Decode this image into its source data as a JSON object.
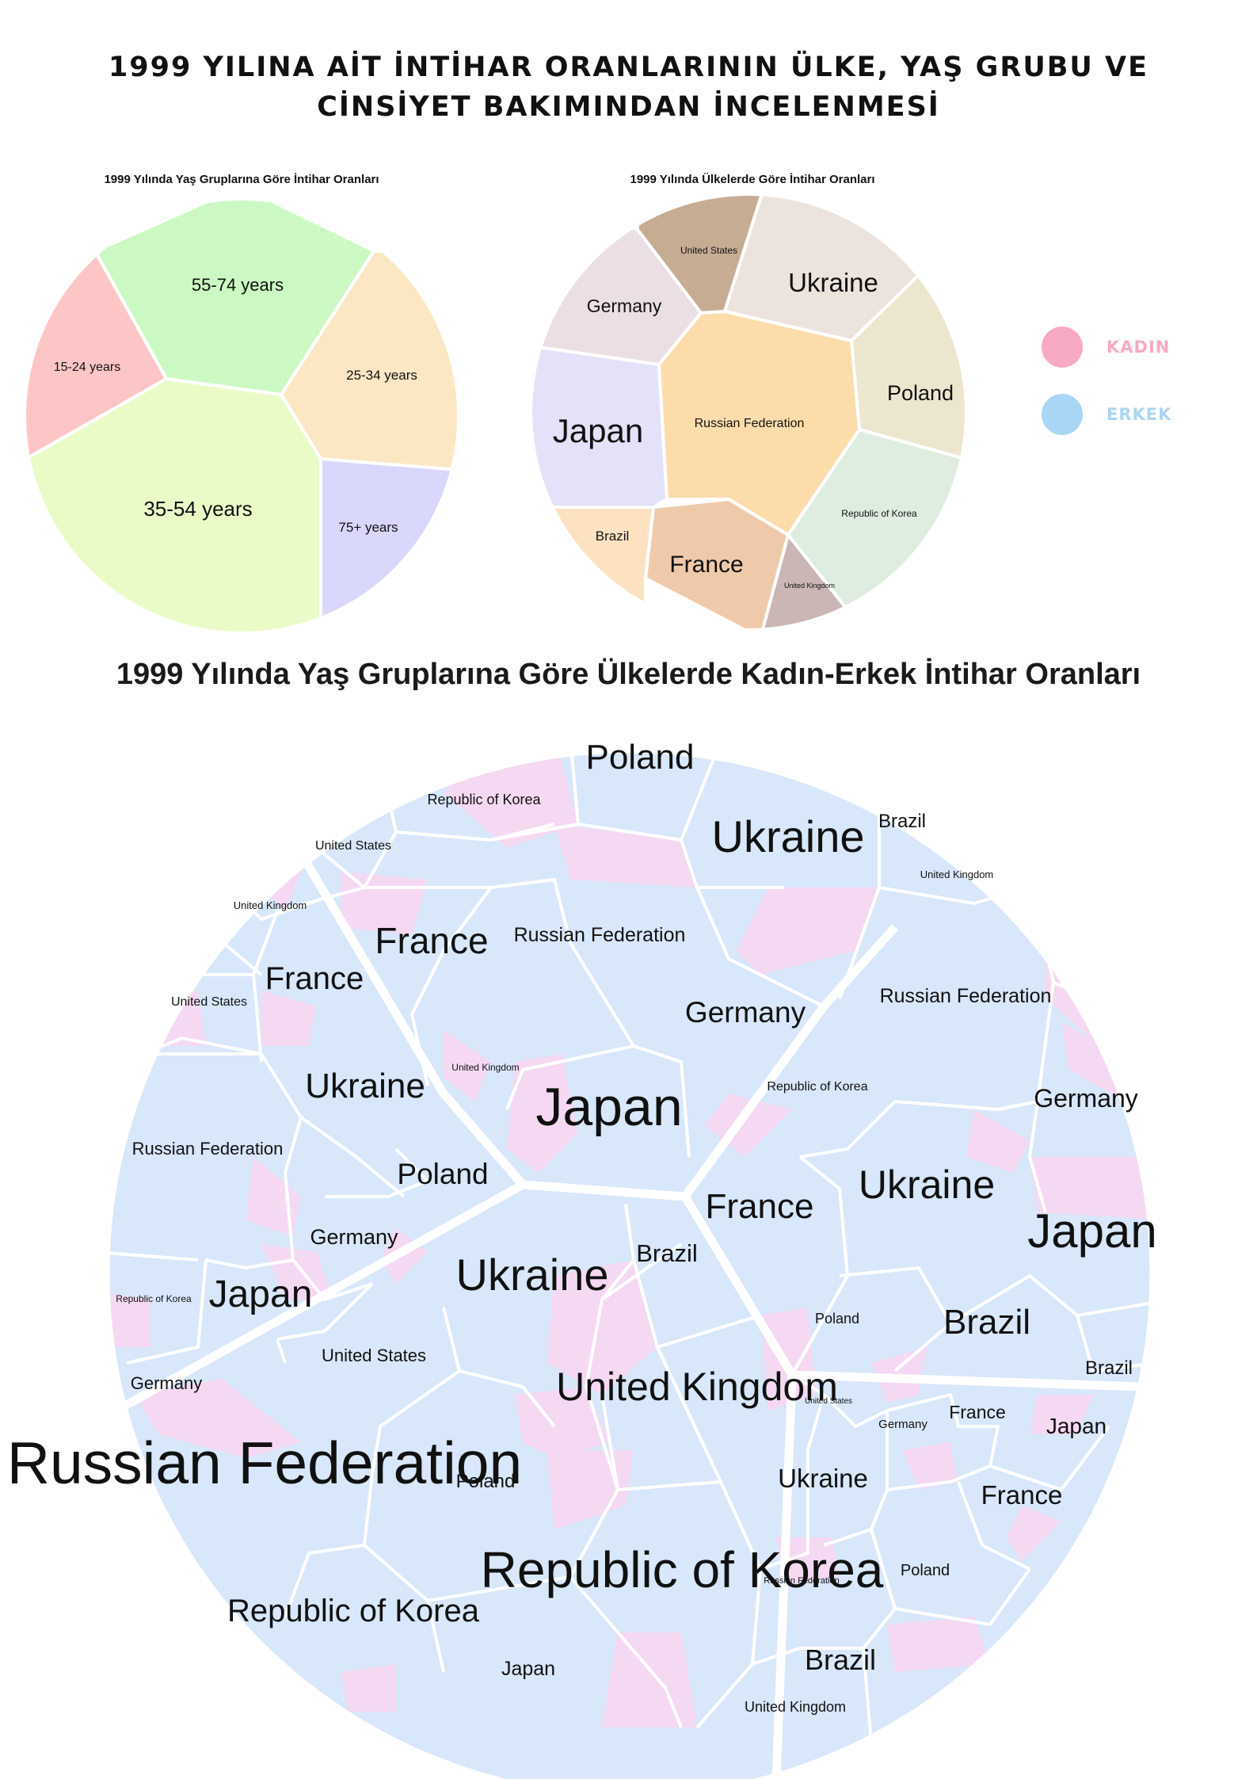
{
  "page_title": {
    "line1": "1999 YILINA AİT İNTİHAR ORANLARININ ÜLKE, YAŞ GRUBU VE",
    "line2": "CİNSİYET BAKIMINDAN İNCELENMESİ"
  },
  "legend": {
    "items": [
      {
        "label": "KADIN",
        "color": "#f8aac4"
      },
      {
        "label": "ERKEK",
        "color": "#a9d6f4"
      }
    ]
  },
  "colors": {
    "female_cell": "#f5d9f2",
    "male_cell": "#d8e7fa",
    "cell_border": "#ffffff"
  },
  "chart_data": [
    {
      "type": "voronoi-treemap",
      "title": "1999 Yılında Yaş Gruplarına Göre İntihar Oranları",
      "categories": [
        "55-74 years",
        "25-34 years",
        "75+ years",
        "35-54 years",
        "15-24 years"
      ],
      "values": [
        31,
        17,
        14,
        38,
        12
      ],
      "colors": [
        "#ccf9c3",
        "#fce7c4",
        "#d9d7fc",
        "#ebfbc8",
        "#fdc6c6"
      ]
    },
    {
      "type": "voronoi-treemap",
      "title": "1999 Yılında Ülkelerde Göre İntihar Oranları",
      "categories": [
        "United States",
        "Ukraine",
        "Poland",
        "Republic of Korea",
        "United Kingdom",
        "France",
        "Brazil",
        "Japan",
        "Germany",
        "Russian Federation"
      ],
      "values": [
        7,
        17,
        10,
        13,
        5,
        14,
        4,
        13,
        9,
        24
      ],
      "colors": [
        "#c7ac94",
        "#ede3dd",
        "#ede6cf",
        "#deede0",
        "#cab6b5",
        "#efcaaa",
        "#fde2c2",
        "#e3e2f8",
        "#ecdfe3",
        "#fcdcab"
      ]
    },
    {
      "type": "voronoi-treemap",
      "title": "1999 Yılında Yaş Gruplarına Göre Ülkelerde Kadın-Erkek İntihar Oranları",
      "groups": [
        "55-74 years",
        "25-34 years",
        "75+ years",
        "35-54 years",
        "15-24 years"
      ],
      "series": [
        {
          "name": "KADIN"
        },
        {
          "name": "ERKEK"
        }
      ],
      "cells": [
        {
          "label": "Poland"
        },
        {
          "label": "Republic of Korea"
        },
        {
          "label": "Ukraine"
        },
        {
          "label": "Brazil"
        },
        {
          "label": "United States"
        },
        {
          "label": "United Kingdom"
        },
        {
          "label": "United Kingdom"
        },
        {
          "label": "France"
        },
        {
          "label": "Russian Federation"
        },
        {
          "label": "United States"
        },
        {
          "label": "France"
        },
        {
          "label": "Germany"
        },
        {
          "label": "Russian Federation"
        },
        {
          "label": "United Kingdom"
        },
        {
          "label": "Japan"
        },
        {
          "label": "Republic of Korea"
        },
        {
          "label": "Germany"
        },
        {
          "label": "Ukraine"
        },
        {
          "label": "Russian Federation"
        },
        {
          "label": "Poland"
        },
        {
          "label": "France"
        },
        {
          "label": "Ukraine"
        },
        {
          "label": "Germany"
        },
        {
          "label": "Japan"
        },
        {
          "label": "Republic of Korea"
        },
        {
          "label": "Japan"
        },
        {
          "label": "Ukraine"
        },
        {
          "label": "Brazil"
        },
        {
          "label": "United States"
        },
        {
          "label": "Poland"
        },
        {
          "label": "Brazil"
        },
        {
          "label": "Brazil"
        },
        {
          "label": "Germany"
        },
        {
          "label": "United Kingdom"
        },
        {
          "label": "United States"
        },
        {
          "label": "Germany"
        },
        {
          "label": "France"
        },
        {
          "label": "Japan"
        },
        {
          "label": "Russian Federation"
        },
        {
          "label": "Poland"
        },
        {
          "label": "Ukraine"
        },
        {
          "label": "France"
        },
        {
          "label": "Republic of Korea"
        },
        {
          "label": "Russian Federation"
        },
        {
          "label": "Poland"
        },
        {
          "label": "Republic of Korea"
        },
        {
          "label": "Japan"
        },
        {
          "label": "Brazil"
        },
        {
          "label": "United Kingdom"
        }
      ]
    }
  ]
}
